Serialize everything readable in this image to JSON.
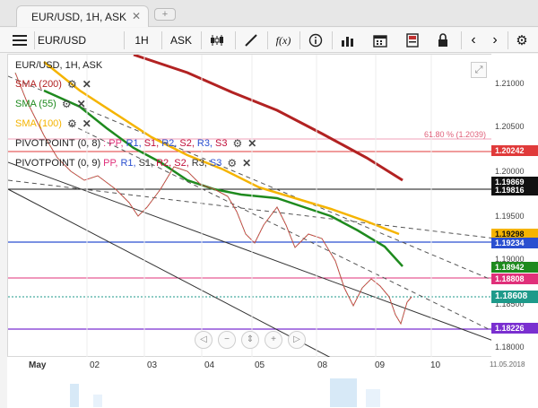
{
  "tab": {
    "title": "EUR/USD, 1H, ASK",
    "close": "✕",
    "add": "+"
  },
  "toolbar": {
    "symbol": "EUR/USD",
    "timeframe": "1H",
    "price_type": "ASK",
    "fx_label": "f(x)"
  },
  "legend": {
    "instrument": "EUR/USD, 1H, ASK",
    "sma200": "SMA (200)",
    "sma55": "SMA (55)",
    "sma100": "SMA (100)",
    "pivot1": {
      "name": "PIVOTPOINT (0, 8)",
      "params": [
        ": PP,",
        "R1,",
        "S1,",
        "R2,",
        "S2,",
        "R3,",
        "S3"
      ]
    },
    "pivot2": {
      "name": "PIVOTPOINT (0, 9)",
      "params": [
        "PP,",
        "R1,",
        "S1,",
        "R2,",
        "S2,",
        "R3,",
        "S3"
      ]
    },
    "fib": "61.80 % (1.2039)"
  },
  "colors": {
    "sma200": "#b22222",
    "sma55": "#1e8a1e",
    "sma100": "#f5b400",
    "pivot_pp": "#e0307a",
    "pivot_r": "#2a4fd0",
    "pivot_s": "#c0103a",
    "purple": "#7a2fd0"
  },
  "axis": {
    "ticks": [
      "1.21000",
      "1.20500",
      "1.20000",
      "1.19500",
      "1.19000",
      "1.18500",
      "1.18000"
    ],
    "badges": [
      {
        "value": "1.20242",
        "color": "#e03a3a"
      },
      {
        "value": "1.19869",
        "color": "#111111"
      },
      {
        "value": "1.19816",
        "color": "#111111"
      },
      {
        "value": "1.19298",
        "color": "#f5b400"
      },
      {
        "value": "1.19234",
        "color": "#2a4fd0"
      },
      {
        "value": "1.18942",
        "color": "#1e8a1e"
      },
      {
        "value": "1.18808",
        "color": "#e0307a"
      },
      {
        "value": "1.18608",
        "color": "#1e9a8a"
      },
      {
        "value": "1.18226",
        "color": "#7a2fd0"
      }
    ]
  },
  "dates": [
    "May",
    "02",
    "03",
    "04",
    "05",
    "08",
    "09",
    "10",
    "11.05.2018"
  ]
}
